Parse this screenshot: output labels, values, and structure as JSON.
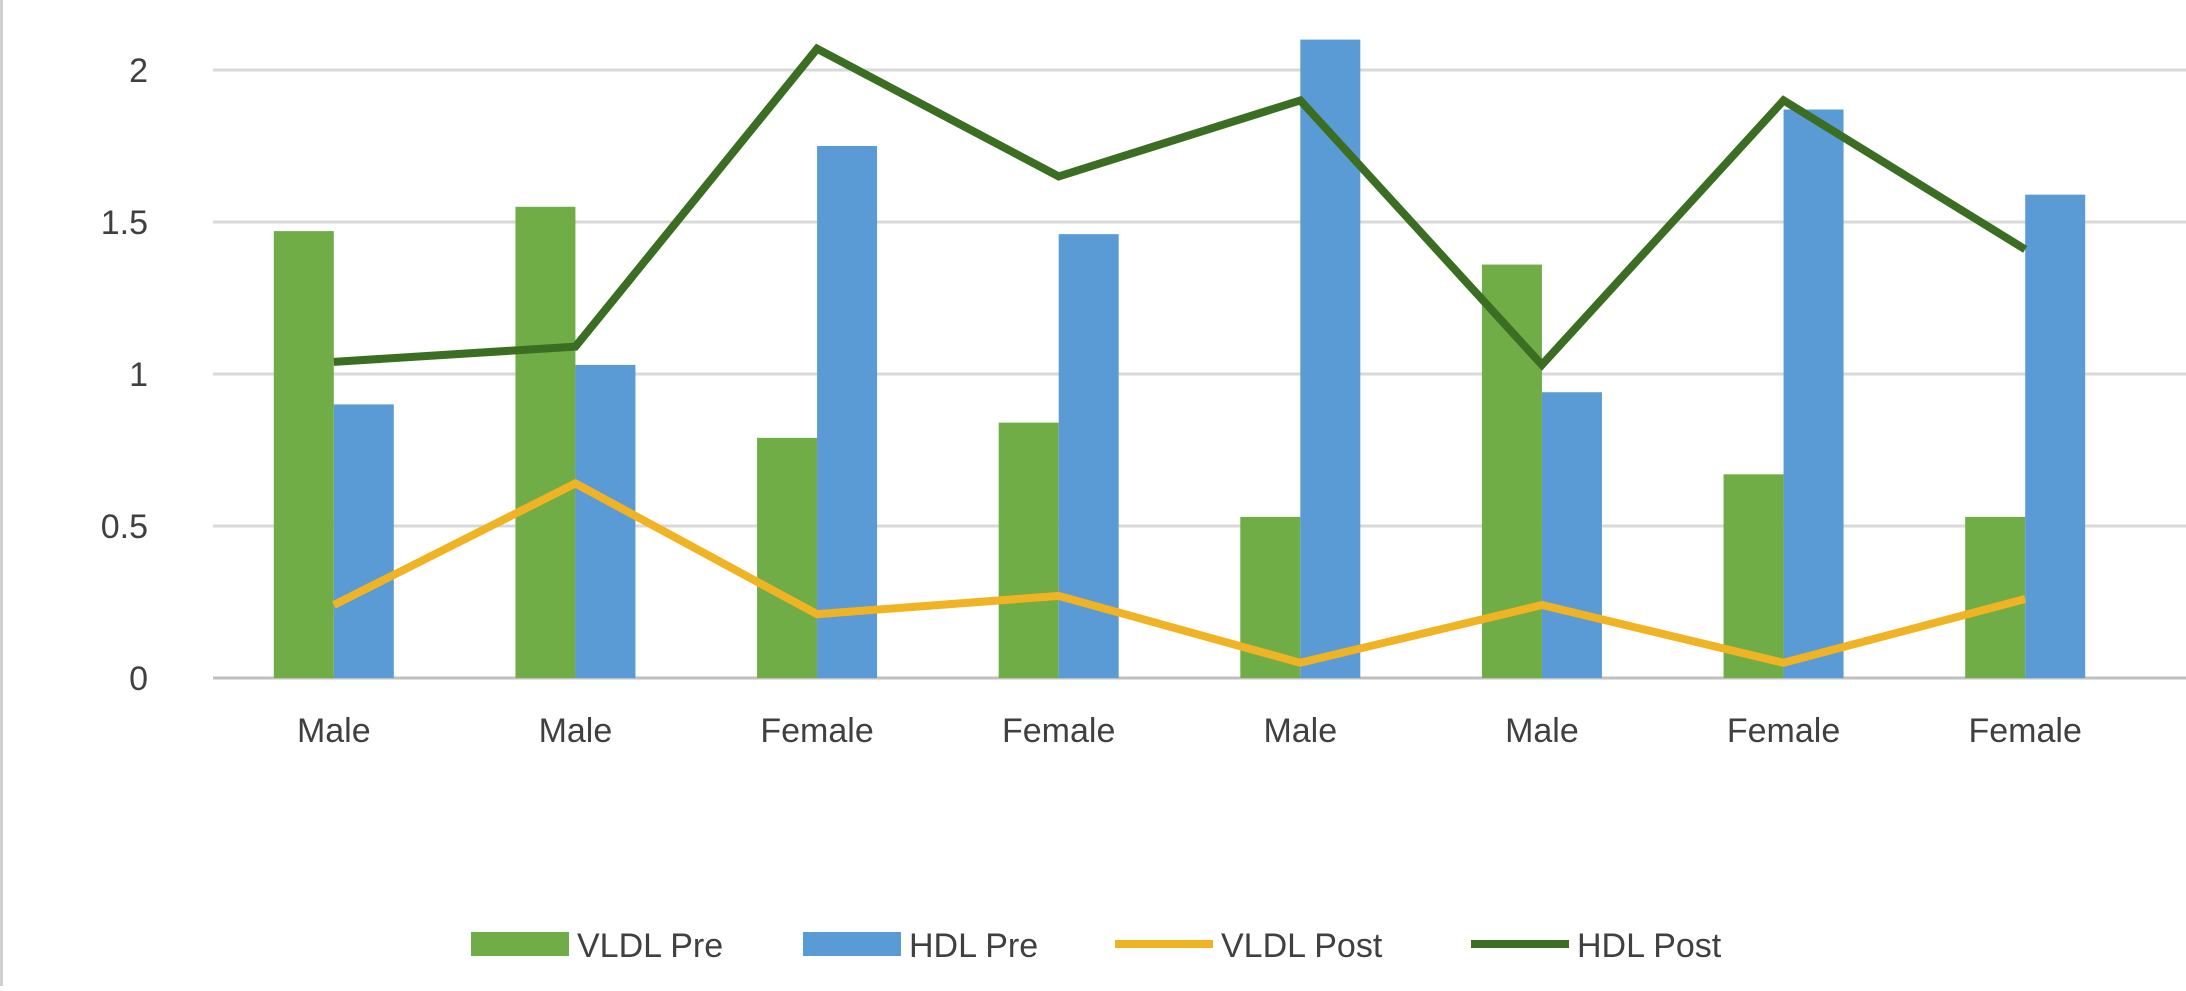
{
  "chart_data": {
    "type": "bar",
    "title": "",
    "xlabel": "",
    "ylabel": "",
    "categories": [
      "Male",
      "Male",
      "Female",
      "Female",
      "Male",
      "Male",
      "Female",
      "Female"
    ],
    "ylim": [
      0,
      2
    ],
    "yticks": [
      0,
      0.5,
      1,
      1.5,
      2
    ],
    "ytick_labels": [
      "0",
      "0.5",
      "1",
      "1.5",
      "2"
    ],
    "grid": true,
    "legend_position": "bottom",
    "series": [
      {
        "name": "VLDL Pre",
        "kind": "bar",
        "color": "#70ad47",
        "values": [
          1.47,
          1.55,
          0.79,
          0.84,
          0.53,
          1.36,
          0.67,
          0.53
        ]
      },
      {
        "name": "HDL Pre",
        "kind": "bar",
        "color": "#5b9bd5",
        "values": [
          0.9,
          1.03,
          1.75,
          1.46,
          2.1,
          0.94,
          1.87,
          1.59
        ]
      },
      {
        "name": "VLDL Post",
        "kind": "line",
        "color": "#f0b323",
        "values": [
          0.24,
          0.64,
          0.21,
          0.27,
          0.05,
          0.24,
          0.05,
          0.26
        ]
      },
      {
        "name": "HDL Post",
        "kind": "line",
        "color": "#3b6e22",
        "values": [
          1.04,
          1.09,
          2.07,
          1.65,
          1.9,
          1.03,
          1.9,
          1.41
        ]
      }
    ]
  }
}
